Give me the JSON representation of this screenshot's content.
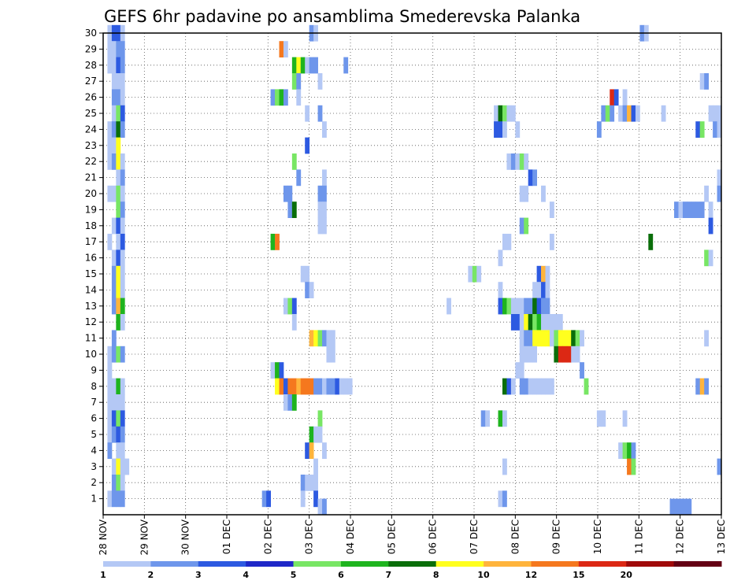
{
  "chart_data": {
    "type": "heatmap",
    "title": "GEFS 6hr padavine po ansamblima Smederevska Palanka",
    "xlabel": "",
    "ylabel": "",
    "x_tick_labels": [
      "28 NOV",
      "29 NOV",
      "30 NOV",
      "01 DEC",
      "02 DEC",
      "03 DEC",
      "04 DEC",
      "05 DEC",
      "06 DEC",
      "07 DEC",
      "08 DEC",
      "09 DEC",
      "10 DEC",
      "11 DEC",
      "12 DEC",
      "13 DEC"
    ],
    "y_tick_labels": [
      "1",
      "2",
      "3",
      "4",
      "5",
      "6",
      "7",
      "8",
      "9",
      "10",
      "11",
      "12",
      "13",
      "14",
      "15",
      "16",
      "17",
      "18",
      "19",
      "20",
      "21",
      "22",
      "23",
      "24",
      "25",
      "26",
      "27",
      "28",
      "29",
      "30"
    ],
    "xlim": [
      "28 NOV 00Z",
      "13 DEC 00Z"
    ],
    "ylim": [
      0,
      30
    ],
    "time_step_hours": 6,
    "grid": true,
    "colorbar": {
      "position": "bottom",
      "tick_labels": [
        "1",
        "2",
        "3",
        "4",
        "5",
        "6",
        "7",
        "8",
        "10",
        "12",
        "15",
        "20"
      ],
      "bin_colors": [
        "#b4c8f5",
        "#6e96eb",
        "#2d5ae1",
        "#1e28c8",
        "#78e664",
        "#1eb41e",
        "#0a6e0a",
        "#ffff1e",
        "#ffb43c",
        "#f5781e",
        "#dc2814",
        "#a00a0a",
        "#640014"
      ]
    },
    "cells_note": "each entry: [member 1-30, 6h step index from 28 NOV 00Z, colour class index into bin_colors]",
    "cells": [
      [
        30,
        1,
        0
      ],
      [
        30,
        2,
        2
      ],
      [
        30,
        3,
        2
      ],
      [
        30,
        4,
        0
      ],
      [
        30,
        48,
        1
      ],
      [
        30,
        49,
        0
      ],
      [
        30,
        125,
        1
      ],
      [
        30,
        126,
        0
      ],
      [
        29,
        1,
        0
      ],
      [
        29,
        2,
        0
      ],
      [
        29,
        3,
        1
      ],
      [
        29,
        4,
        1
      ],
      [
        29,
        41,
        9
      ],
      [
        29,
        42,
        0
      ],
      [
        28,
        1,
        0
      ],
      [
        28,
        2,
        0
      ],
      [
        28,
        3,
        2
      ],
      [
        28,
        4,
        1
      ],
      [
        28,
        44,
        5
      ],
      [
        28,
        45,
        7
      ],
      [
        28,
        46,
        5
      ],
      [
        28,
        47,
        0
      ],
      [
        28,
        48,
        1
      ],
      [
        28,
        49,
        1
      ],
      [
        28,
        56,
        1
      ],
      [
        27,
        2,
        0
      ],
      [
        27,
        3,
        0
      ],
      [
        27,
        4,
        0
      ],
      [
        27,
        44,
        4
      ],
      [
        27,
        45,
        1
      ],
      [
        27,
        50,
        0
      ],
      [
        27,
        139,
        0
      ],
      [
        27,
        140,
        1
      ],
      [
        26,
        2,
        1
      ],
      [
        26,
        3,
        1
      ],
      [
        26,
        4,
        0
      ],
      [
        26,
        39,
        1
      ],
      [
        26,
        40,
        4
      ],
      [
        26,
        41,
        5
      ],
      [
        26,
        42,
        1
      ],
      [
        26,
        45,
        0
      ],
      [
        26,
        118,
        10
      ],
      [
        26,
        119,
        2
      ],
      [
        26,
        121,
        0
      ],
      [
        25,
        2,
        0
      ],
      [
        25,
        3,
        4
      ],
      [
        25,
        4,
        2
      ],
      [
        25,
        47,
        0
      ],
      [
        25,
        50,
        1
      ],
      [
        25,
        91,
        0
      ],
      [
        25,
        92,
        6
      ],
      [
        25,
        93,
        4
      ],
      [
        25,
        94,
        0
      ],
      [
        25,
        95,
        0
      ],
      [
        25,
        116,
        1
      ],
      [
        25,
        117,
        4
      ],
      [
        25,
        118,
        1
      ],
      [
        25,
        120,
        0
      ],
      [
        25,
        121,
        1
      ],
      [
        25,
        122,
        8
      ],
      [
        25,
        123,
        2
      ],
      [
        25,
        124,
        0
      ],
      [
        25,
        130,
        0
      ],
      [
        25,
        141,
        0
      ],
      [
        25,
        142,
        0
      ],
      [
        25,
        143,
        0
      ],
      [
        24,
        1,
        0
      ],
      [
        24,
        2,
        1
      ],
      [
        24,
        3,
        6
      ],
      [
        24,
        4,
        1
      ],
      [
        24,
        51,
        0
      ],
      [
        24,
        91,
        2
      ],
      [
        24,
        92,
        2
      ],
      [
        24,
        93,
        0
      ],
      [
        24,
        96,
        0
      ],
      [
        24,
        115,
        1
      ],
      [
        24,
        138,
        2
      ],
      [
        24,
        139,
        4
      ],
      [
        24,
        142,
        1
      ],
      [
        24,
        143,
        0
      ],
      [
        23,
        1,
        0
      ],
      [
        23,
        2,
        0
      ],
      [
        23,
        3,
        7
      ],
      [
        23,
        47,
        2
      ],
      [
        22,
        1,
        0
      ],
      [
        22,
        2,
        1
      ],
      [
        22,
        3,
        7
      ],
      [
        22,
        4,
        0
      ],
      [
        22,
        44,
        4
      ],
      [
        22,
        94,
        0
      ],
      [
        22,
        95,
        1
      ],
      [
        22,
        96,
        0
      ],
      [
        22,
        97,
        4
      ],
      [
        22,
        98,
        0
      ],
      [
        21,
        3,
        0
      ],
      [
        21,
        4,
        1
      ],
      [
        21,
        45,
        1
      ],
      [
        21,
        51,
        0
      ],
      [
        21,
        99,
        2
      ],
      [
        21,
        100,
        1
      ],
      [
        21,
        143,
        0
      ],
      [
        20,
        1,
        0
      ],
      [
        20,
        2,
        0
      ],
      [
        20,
        3,
        4
      ],
      [
        20,
        4,
        0
      ],
      [
        20,
        42,
        1
      ],
      [
        20,
        43,
        1
      ],
      [
        20,
        50,
        1
      ],
      [
        20,
        51,
        1
      ],
      [
        20,
        97,
        0
      ],
      [
        20,
        98,
        0
      ],
      [
        20,
        102,
        0
      ],
      [
        20,
        140,
        0
      ],
      [
        20,
        143,
        1
      ],
      [
        19,
        3,
        4
      ],
      [
        19,
        4,
        1
      ],
      [
        19,
        43,
        1
      ],
      [
        19,
        44,
        6
      ],
      [
        19,
        50,
        0
      ],
      [
        19,
        51,
        0
      ],
      [
        19,
        104,
        0
      ],
      [
        19,
        133,
        1
      ],
      [
        19,
        134,
        0
      ],
      [
        19,
        135,
        1
      ],
      [
        19,
        136,
        1
      ],
      [
        19,
        137,
        1
      ],
      [
        19,
        138,
        1
      ],
      [
        19,
        139,
        1
      ],
      [
        19,
        141,
        0
      ],
      [
        18,
        2,
        0
      ],
      [
        18,
        3,
        2
      ],
      [
        18,
        4,
        0
      ],
      [
        18,
        50,
        0
      ],
      [
        18,
        51,
        0
      ],
      [
        18,
        97,
        1
      ],
      [
        18,
        98,
        4
      ],
      [
        18,
        141,
        2
      ],
      [
        17,
        1,
        0
      ],
      [
        17,
        3,
        0
      ],
      [
        17,
        4,
        2
      ],
      [
        17,
        39,
        5
      ],
      [
        17,
        40,
        9
      ],
      [
        17,
        93,
        0
      ],
      [
        17,
        94,
        0
      ],
      [
        17,
        104,
        0
      ],
      [
        17,
        127,
        6
      ],
      [
        16,
        2,
        0
      ],
      [
        16,
        3,
        2
      ],
      [
        16,
        4,
        0
      ],
      [
        16,
        92,
        0
      ],
      [
        16,
        140,
        4
      ],
      [
        16,
        141,
        0
      ],
      [
        15,
        2,
        1
      ],
      [
        15,
        3,
        7
      ],
      [
        15,
        4,
        0
      ],
      [
        15,
        46,
        0
      ],
      [
        15,
        47,
        0
      ],
      [
        15,
        85,
        0
      ],
      [
        15,
        86,
        4
      ],
      [
        15,
        87,
        0
      ],
      [
        15,
        101,
        2
      ],
      [
        15,
        102,
        8
      ],
      [
        15,
        103,
        0
      ],
      [
        14,
        2,
        1
      ],
      [
        14,
        3,
        7
      ],
      [
        14,
        4,
        0
      ],
      [
        14,
        47,
        1
      ],
      [
        14,
        48,
        0
      ],
      [
        14,
        92,
        0
      ],
      [
        14,
        100,
        0
      ],
      [
        14,
        101,
        0
      ],
      [
        14,
        102,
        2
      ],
      [
        14,
        103,
        0
      ],
      [
        13,
        2,
        1
      ],
      [
        13,
        3,
        8
      ],
      [
        13,
        4,
        5
      ],
      [
        13,
        42,
        0
      ],
      [
        13,
        43,
        4
      ],
      [
        13,
        44,
        2
      ],
      [
        13,
        80,
        0
      ],
      [
        13,
        92,
        2
      ],
      [
        13,
        93,
        5
      ],
      [
        13,
        94,
        4
      ],
      [
        13,
        95,
        0
      ],
      [
        13,
        96,
        0
      ],
      [
        13,
        97,
        0
      ],
      [
        13,
        98,
        1
      ],
      [
        13,
        99,
        1
      ],
      [
        13,
        100,
        6
      ],
      [
        13,
        101,
        2
      ],
      [
        13,
        102,
        1
      ],
      [
        13,
        103,
        1
      ],
      [
        12,
        3,
        5
      ],
      [
        12,
        4,
        0
      ],
      [
        12,
        44,
        0
      ],
      [
        12,
        95,
        2
      ],
      [
        12,
        96,
        2
      ],
      [
        12,
        97,
        0
      ],
      [
        12,
        98,
        7
      ],
      [
        12,
        99,
        6
      ],
      [
        12,
        100,
        4
      ],
      [
        12,
        101,
        5
      ],
      [
        12,
        102,
        0
      ],
      [
        12,
        103,
        0
      ],
      [
        12,
        104,
        0
      ],
      [
        12,
        105,
        0
      ],
      [
        12,
        106,
        0
      ],
      [
        11,
        2,
        1
      ],
      [
        11,
        48,
        8
      ],
      [
        11,
        49,
        7
      ],
      [
        11,
        50,
        4
      ],
      [
        11,
        51,
        1
      ],
      [
        11,
        52,
        0
      ],
      [
        11,
        53,
        0
      ],
      [
        11,
        97,
        0
      ],
      [
        11,
        98,
        1
      ],
      [
        11,
        99,
        1
      ],
      [
        11,
        100,
        7
      ],
      [
        11,
        101,
        7
      ],
      [
        11,
        102,
        7
      ],
      [
        11,
        103,
        7
      ],
      [
        11,
        104,
        0
      ],
      [
        11,
        105,
        4
      ],
      [
        11,
        106,
        7
      ],
      [
        11,
        107,
        7
      ],
      [
        11,
        108,
        7
      ],
      [
        11,
        109,
        6
      ],
      [
        11,
        110,
        4
      ],
      [
        11,
        111,
        0
      ],
      [
        11,
        140,
        0
      ],
      [
        10,
        1,
        0
      ],
      [
        10,
        2,
        1
      ],
      [
        10,
        3,
        4
      ],
      [
        10,
        4,
        1
      ],
      [
        10,
        52,
        0
      ],
      [
        10,
        53,
        0
      ],
      [
        10,
        97,
        0
      ],
      [
        10,
        98,
        0
      ],
      [
        10,
        99,
        0
      ],
      [
        10,
        100,
        0
      ],
      [
        10,
        105,
        6
      ],
      [
        10,
        106,
        10
      ],
      [
        10,
        107,
        10
      ],
      [
        10,
        108,
        10
      ],
      [
        10,
        109,
        0
      ],
      [
        10,
        110,
        0
      ],
      [
        9,
        1,
        0
      ],
      [
        9,
        39,
        0
      ],
      [
        9,
        40,
        5
      ],
      [
        9,
        41,
        2
      ],
      [
        9,
        96,
        0
      ],
      [
        9,
        97,
        0
      ],
      [
        9,
        111,
        1
      ],
      [
        8,
        1,
        0
      ],
      [
        8,
        2,
        0
      ],
      [
        8,
        3,
        5
      ],
      [
        8,
        4,
        0
      ],
      [
        8,
        40,
        7
      ],
      [
        8,
        41,
        9
      ],
      [
        8,
        42,
        2
      ],
      [
        8,
        43,
        9
      ],
      [
        8,
        44,
        9
      ],
      [
        8,
        45,
        8
      ],
      [
        8,
        46,
        9
      ],
      [
        8,
        47,
        9
      ],
      [
        8,
        48,
        9
      ],
      [
        8,
        49,
        1
      ],
      [
        8,
        50,
        1
      ],
      [
        8,
        51,
        0
      ],
      [
        8,
        52,
        1
      ],
      [
        8,
        53,
        1
      ],
      [
        8,
        54,
        2
      ],
      [
        8,
        55,
        0
      ],
      [
        8,
        56,
        0
      ],
      [
        8,
        57,
        0
      ],
      [
        8,
        93,
        6
      ],
      [
        8,
        94,
        2
      ],
      [
        8,
        95,
        0
      ],
      [
        8,
        97,
        1
      ],
      [
        8,
        98,
        1
      ],
      [
        8,
        99,
        0
      ],
      [
        8,
        100,
        0
      ],
      [
        8,
        101,
        0
      ],
      [
        8,
        102,
        0
      ],
      [
        8,
        103,
        0
      ],
      [
        8,
        104,
        0
      ],
      [
        8,
        112,
        4
      ],
      [
        8,
        138,
        1
      ],
      [
        8,
        139,
        8
      ],
      [
        8,
        140,
        1
      ],
      [
        7,
        1,
        0
      ],
      [
        7,
        2,
        0
      ],
      [
        7,
        3,
        0
      ],
      [
        7,
        4,
        0
      ],
      [
        7,
        42,
        0
      ],
      [
        7,
        43,
        1
      ],
      [
        7,
        44,
        5
      ],
      [
        6,
        1,
        0
      ],
      [
        6,
        2,
        2
      ],
      [
        6,
        3,
        4
      ],
      [
        6,
        4,
        2
      ],
      [
        6,
        50,
        4
      ],
      [
        6,
        88,
        1
      ],
      [
        6,
        89,
        0
      ],
      [
        6,
        92,
        5
      ],
      [
        6,
        93,
        0
      ],
      [
        6,
        115,
        0
      ],
      [
        6,
        116,
        0
      ],
      [
        6,
        121,
        0
      ],
      [
        5,
        1,
        0
      ],
      [
        5,
        2,
        1
      ],
      [
        5,
        3,
        2
      ],
      [
        5,
        4,
        1
      ],
      [
        5,
        48,
        5
      ],
      [
        5,
        49,
        0
      ],
      [
        5,
        50,
        0
      ],
      [
        4,
        1,
        1
      ],
      [
        4,
        3,
        0
      ],
      [
        4,
        4,
        0
      ],
      [
        4,
        47,
        2
      ],
      [
        4,
        48,
        8
      ],
      [
        4,
        51,
        0
      ],
      [
        4,
        120,
        0
      ],
      [
        4,
        121,
        4
      ],
      [
        4,
        122,
        5
      ],
      [
        4,
        123,
        1
      ],
      [
        3,
        2,
        0
      ],
      [
        3,
        3,
        7
      ],
      [
        3,
        4,
        0
      ],
      [
        3,
        5,
        0
      ],
      [
        3,
        49,
        0
      ],
      [
        3,
        93,
        0
      ],
      [
        3,
        122,
        9
      ],
      [
        3,
        123,
        4
      ],
      [
        3,
        143,
        1
      ],
      [
        2,
        2,
        1
      ],
      [
        2,
        3,
        4
      ],
      [
        2,
        4,
        0
      ],
      [
        2,
        46,
        1
      ],
      [
        2,
        47,
        0
      ],
      [
        2,
        48,
        0
      ],
      [
        2,
        49,
        0
      ],
      [
        1,
        1,
        0
      ],
      [
        1,
        2,
        1
      ],
      [
        1,
        3,
        1
      ],
      [
        1,
        4,
        1
      ],
      [
        1,
        37,
        1
      ],
      [
        1,
        38,
        2
      ],
      [
        1,
        46,
        0
      ],
      [
        1,
        49,
        2
      ],
      [
        1,
        92,
        0
      ],
      [
        1,
        93,
        1
      ],
      [
        0.5,
        50,
        0
      ],
      [
        0.5,
        51,
        1
      ],
      [
        0.5,
        132,
        1
      ],
      [
        0.5,
        133,
        1
      ],
      [
        0.5,
        134,
        1
      ],
      [
        0.5,
        135,
        1
      ],
      [
        0.5,
        136,
        1
      ]
    ]
  }
}
